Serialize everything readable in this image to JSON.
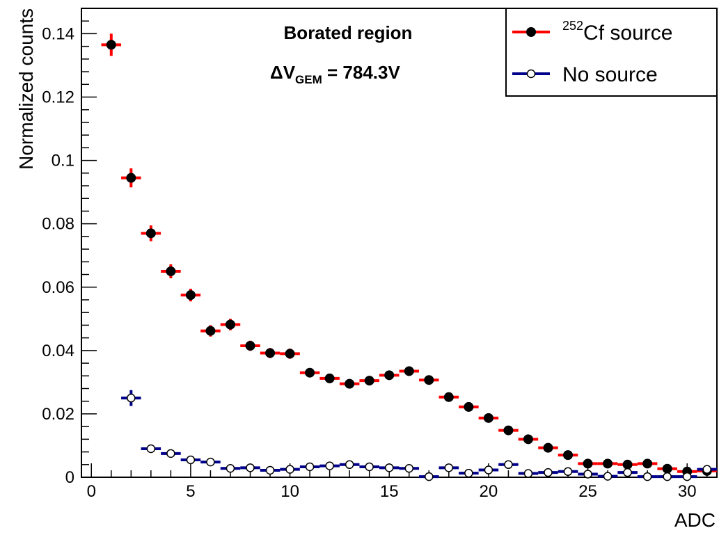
{
  "chart_data": {
    "type": "scatter",
    "xlabel": "ADC",
    "ylabel": "Normalized counts",
    "xlim": [
      -0.5,
      31.5
    ],
    "ylim": [
      0,
      0.148
    ],
    "x_ticks": [
      "0",
      "5",
      "10",
      "15",
      "20",
      "25",
      "30"
    ],
    "y_ticks": [
      "0",
      "0.02",
      "0.04",
      "0.06",
      "0.08",
      "0.1",
      "0.12",
      "0.14"
    ],
    "annotations": {
      "region": "Borated region",
      "delta_symbol": "ΔV",
      "subscript": "GEM",
      "value": " = 784.3V"
    },
    "legend": {
      "position": "top-right",
      "entries": [
        {
          "superscript": "252",
          "text": "Cf source",
          "color": "#ff0000",
          "marker": "filled-circle"
        },
        {
          "superscript": "",
          "text": "No source",
          "color": "#00008b",
          "marker": "open-circle"
        }
      ]
    },
    "series": [
      {
        "name": "Cf source",
        "color": "#ff0000",
        "marker": "filled",
        "x": [
          1,
          2,
          3,
          4,
          5,
          6,
          7,
          8,
          9,
          10,
          11,
          12,
          13,
          14,
          15,
          16,
          17,
          18,
          19,
          20,
          21,
          22,
          23,
          24,
          25,
          26,
          27,
          28,
          29,
          30,
          31
        ],
        "y": [
          0.1365,
          0.0945,
          0.077,
          0.065,
          0.0575,
          0.0462,
          0.0482,
          0.0415,
          0.0392,
          0.039,
          0.033,
          0.0312,
          0.0295,
          0.0305,
          0.0322,
          0.0335,
          0.0307,
          0.0253,
          0.0222,
          0.0187,
          0.0148,
          0.012,
          0.0093,
          0.007,
          0.0043,
          0.0043,
          0.004,
          0.0043,
          0.0027,
          0.0018,
          0.002
        ],
        "err": [
          0.0035,
          0.003,
          0.0025,
          0.0022,
          0.002,
          0.0018,
          0.0018,
          0.0016,
          0.0016,
          0.0016,
          0.0014,
          0.0014,
          0.0013,
          0.0013,
          0.0014,
          0.0014,
          0.0013,
          0.0012,
          0.0011,
          0.001,
          0.0009,
          0.0008,
          0.0007,
          0.0006,
          0.0005,
          0.0005,
          0.0005,
          0.0005,
          0.0004,
          0.0004,
          0.0004
        ]
      },
      {
        "name": "No source",
        "color": "#00008b",
        "marker": "open",
        "x": [
          2,
          3,
          4,
          5,
          6,
          7,
          8,
          9,
          10,
          11,
          12,
          13,
          14,
          15,
          16,
          17,
          18,
          19,
          20,
          21,
          22,
          23,
          24,
          25,
          26,
          27,
          28,
          29,
          30,
          31
        ],
        "y": [
          0.025,
          0.009,
          0.0075,
          0.0055,
          0.0048,
          0.0028,
          0.003,
          0.0022,
          0.0025,
          0.0033,
          0.0036,
          0.004,
          0.0033,
          0.003,
          0.0028,
          0.0002,
          0.003,
          0.0013,
          0.0023,
          0.004,
          0.0012,
          0.0015,
          0.0018,
          0.001,
          0.0003,
          0.0015,
          0.0002,
          0.0002,
          0.0002,
          0.0025
        ],
        "err": [
          0.0025,
          0.001,
          0.0009,
          0.0008,
          0.0007,
          0.0006,
          0.0006,
          0.0005,
          0.0005,
          0.0006,
          0.0006,
          0.0006,
          0.0006,
          0.0006,
          0.0006,
          0.0003,
          0.0006,
          0.0004,
          0.0005,
          0.0006,
          0.0004,
          0.0004,
          0.0004,
          0.0003,
          0.0003,
          0.0004,
          0.0003,
          0.0003,
          0.0003,
          0.0005
        ]
      }
    ]
  }
}
